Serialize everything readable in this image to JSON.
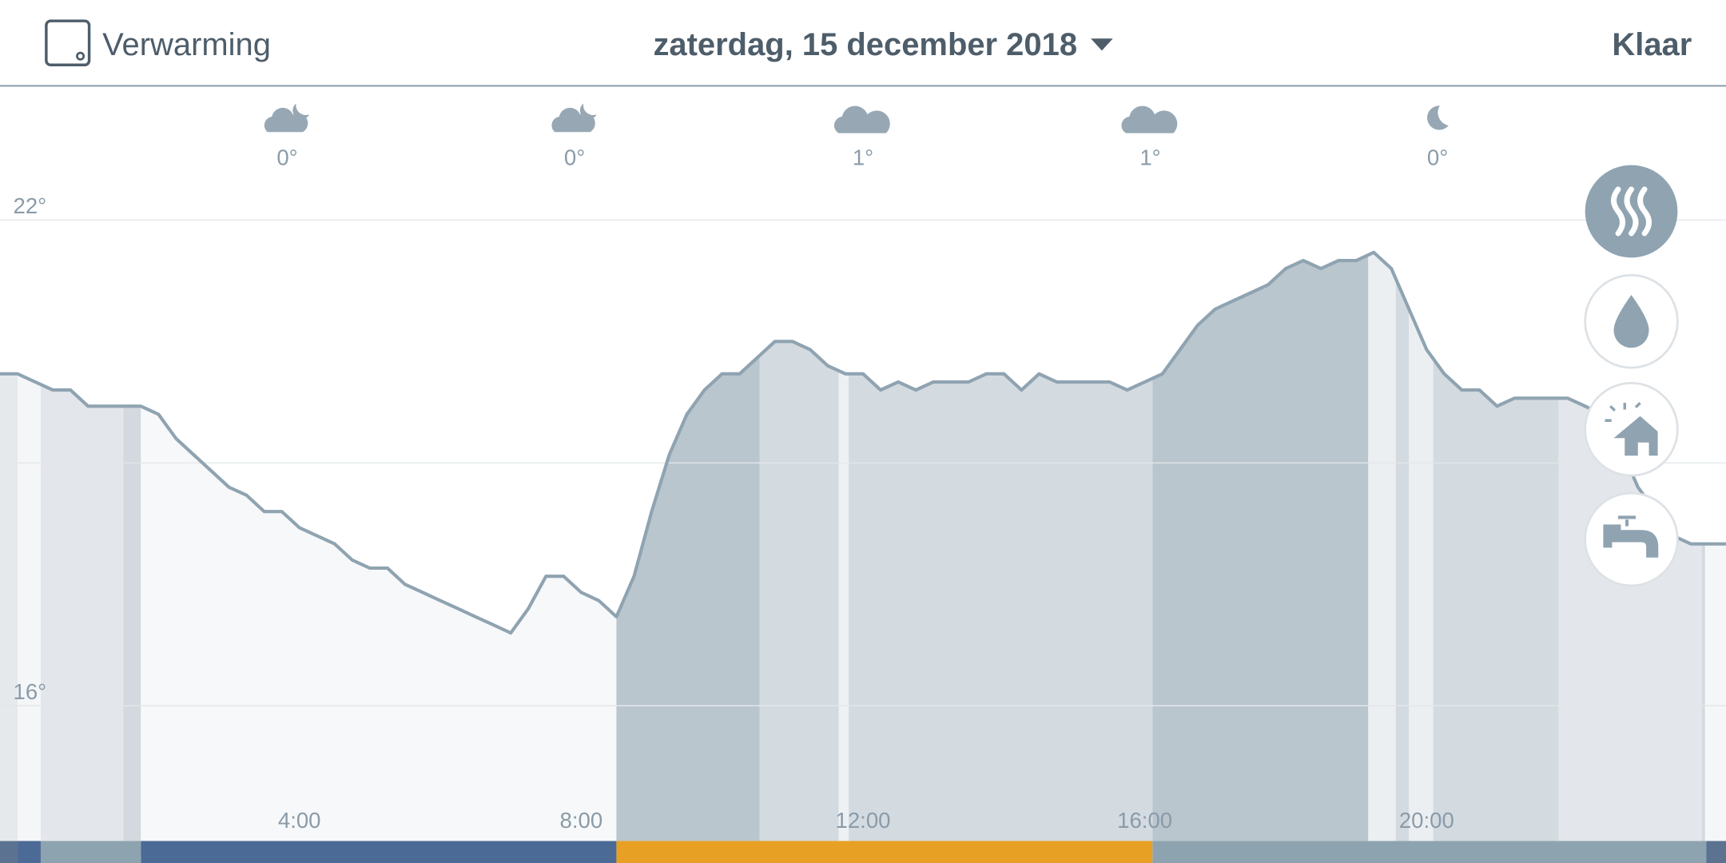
{
  "header": {
    "device": "Verwarming",
    "date": "zaterdag, 15 december 2018",
    "done": "Klaar"
  },
  "weather": [
    {
      "temp": "0°"
    },
    {
      "temp": "0°"
    },
    {
      "temp": "1°"
    },
    {
      "temp": "1°"
    },
    {
      "temp": "0°"
    }
  ],
  "chart_data": {
    "type": "area",
    "color": "#8fa3b1",
    "x": [
      0,
      0.25,
      0.5,
      0.75,
      1,
      1.25,
      1.5,
      1.75,
      2,
      2.25,
      2.5,
      2.75,
      3,
      3.25,
      3.5,
      3.75,
      4,
      4.25,
      4.5,
      4.75,
      5,
      5.25,
      5.5,
      5.75,
      6,
      6.25,
      6.5,
      6.75,
      7,
      7.25,
      7.5,
      7.75,
      8,
      8.25,
      8.5,
      8.75,
      9,
      9.25,
      9.5,
      9.75,
      10,
      10.25,
      10.5,
      10.75,
      11,
      11.25,
      11.5,
      11.75,
      12,
      12.25,
      12.5,
      12.75,
      13,
      13.25,
      13.5,
      13.75,
      14,
      14.25,
      14.5,
      14.75,
      15,
      15.25,
      15.5,
      15.75,
      16,
      16.25,
      16.5,
      16.75,
      17,
      17.25,
      17.5,
      17.75,
      18,
      18.25,
      18.5,
      18.75,
      19,
      19.25,
      19.5,
      19.75,
      20,
      20.25,
      20.5,
      20.75,
      21,
      21.25,
      21.5,
      21.75,
      22,
      22.25,
      22.5,
      22.75,
      23,
      23.25,
      23.5,
      23.75,
      24
    ],
    "values": [
      20.1,
      20.0,
      19.9,
      19.9,
      19.7,
      19.7,
      19.7,
      19.7,
      19.6,
      19.3,
      19.1,
      18.9,
      18.7,
      18.6,
      18.4,
      18.4,
      18.2,
      18.1,
      18.0,
      17.8,
      17.7,
      17.7,
      17.5,
      17.4,
      17.3,
      17.2,
      17.1,
      17.0,
      16.9,
      17.2,
      17.6,
      17.6,
      17.4,
      17.3,
      17.1,
      17.6,
      18.4,
      19.1,
      19.6,
      19.9,
      20.1,
      20.1,
      20.3,
      20.5,
      20.5,
      20.4,
      20.2,
      20.1,
      20.1,
      19.9,
      20.0,
      19.9,
      20.0,
      20.0,
      20.0,
      20.1,
      20.1,
      19.9,
      20.1,
      20.0,
      20.0,
      20.0,
      20.0,
      19.9,
      20.0,
      20.1,
      20.4,
      20.7,
      20.9,
      21.0,
      21.1,
      21.2,
      21.4,
      21.5,
      21.4,
      21.5,
      21.5,
      21.6,
      21.4,
      20.9,
      20.4,
      20.1,
      19.9,
      19.9,
      19.7,
      19.8,
      19.8,
      19.8,
      19.8,
      19.7,
      19.6,
      19.2,
      18.7,
      18.4,
      18.1,
      18.0,
      18.0
    ],
    "xlim": [
      -0.25,
      24.25
    ],
    "xticks": [
      {
        "value": 4,
        "label": "4:00"
      },
      {
        "value": 8,
        "label": "8:00"
      },
      {
        "value": 12,
        "label": "12:00"
      },
      {
        "value": 16,
        "label": "16:00"
      },
      {
        "value": 20,
        "label": "20:00"
      }
    ],
    "ylim": [
      14.33,
      23.63
    ],
    "yticks": [
      {
        "value": 22,
        "label": "22°"
      },
      {
        "value": 16,
        "label": "16°"
      }
    ],
    "ygrid": [
      22,
      19,
      16
    ]
  }
}
